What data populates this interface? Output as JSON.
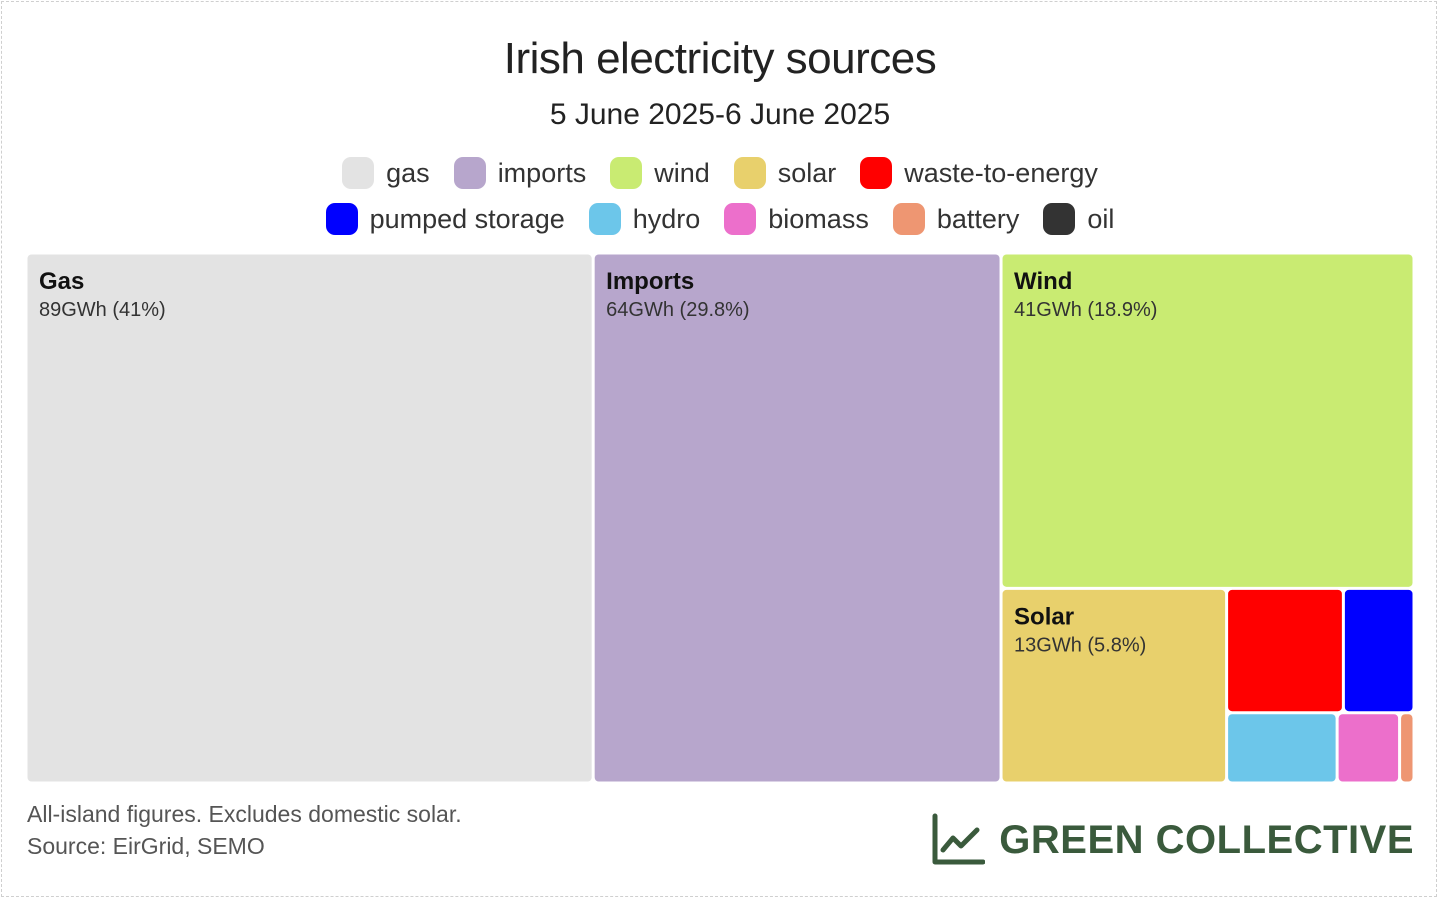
{
  "title": "Irish electricity sources",
  "subtitle": "5 June 2025-6 June 2025",
  "legend": [
    {
      "label": "gas",
      "color": "#e3e3e3"
    },
    {
      "label": "imports",
      "color": "#b7a6cc"
    },
    {
      "label": "wind",
      "color": "#c9eb72"
    },
    {
      "label": "solar",
      "color": "#e8d06c"
    },
    {
      "label": "waste-to-energy",
      "color": "#ff0000"
    },
    {
      "label": "pumped storage",
      "color": "#0000ff"
    },
    {
      "label": "hydro",
      "color": "#6cc6ea"
    },
    {
      "label": "biomass",
      "color": "#ec6fcb"
    },
    {
      "label": "battery",
      "color": "#ee9672"
    },
    {
      "label": "oil",
      "color": "#333333"
    }
  ],
  "chart_data": {
    "type": "treemap",
    "unit": "GWh",
    "series": [
      {
        "name": "gas",
        "label": "Gas",
        "value": 89,
        "percent": 41,
        "value_label": "89GWh (41%)",
        "color": "#e3e3e3"
      },
      {
        "name": "imports",
        "label": "Imports",
        "value": 64,
        "percent": 29.8,
        "value_label": "64GWh (29.8%)",
        "color": "#b7a6cc"
      },
      {
        "name": "wind",
        "label": "Wind",
        "value": 41,
        "percent": 18.9,
        "value_label": "41GWh (18.9%)",
        "color": "#c9eb72"
      },
      {
        "name": "solar",
        "label": "Solar",
        "value": 13,
        "percent": 5.8,
        "value_label": "13GWh (5.8%)",
        "color": "#e8d06c"
      },
      {
        "name": "waste-to-energy",
        "label": "",
        "value": 4.3,
        "color": "#ff0000"
      },
      {
        "name": "pumped storage",
        "label": "",
        "value": 2.6,
        "color": "#0000ff"
      },
      {
        "name": "hydro",
        "label": "",
        "value": 2.3,
        "color": "#6cc6ea"
      },
      {
        "name": "biomass",
        "label": "",
        "value": 1.3,
        "color": "#ec6fcb"
      },
      {
        "name": "battery",
        "label": "",
        "value": 0.3,
        "color": "#ee9672"
      }
    ]
  },
  "footnote": {
    "line1": "All-island figures. Excludes domestic solar.",
    "line2": "Source: EirGrid, SEMO"
  },
  "brand": {
    "name": "GREEN COLLECTIVE",
    "color": "#3a5a3c"
  }
}
